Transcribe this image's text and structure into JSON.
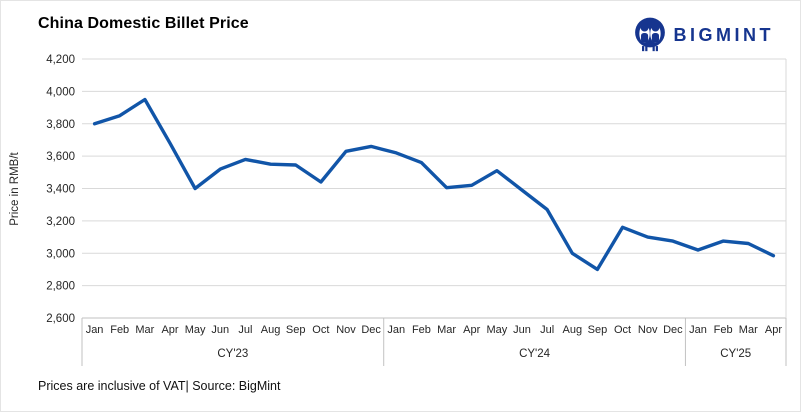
{
  "header": {
    "title": "China Domestic Billet Price",
    "logo_text": "BIGMINT"
  },
  "footer": {
    "note": "Prices are inclusive of VAT| Source: BigMint"
  },
  "colors": {
    "line": "#1155a8",
    "logo": "#16358f",
    "grid": "#d9d9d9",
    "axis": "#c2c2c2",
    "text": "#262626"
  },
  "chart_data": {
    "type": "line",
    "title": "China Domestic Billet Price",
    "xlabel": "",
    "ylabel": "Price in RMB/t",
    "ylim": [
      2600,
      4200
    ],
    "ytick_interval": 200,
    "ytick_labels": [
      "4,200",
      "4,000",
      "3,800",
      "3,600",
      "3,400",
      "3,200",
      "3,000",
      "2,800",
      "2,600"
    ],
    "grid": "horizontal",
    "legend_position": "none",
    "year_groups": [
      {
        "label": "CY'23",
        "months": [
          "Jan",
          "Feb",
          "Mar",
          "Apr",
          "May",
          "Jun",
          "Jul",
          "Aug",
          "Sep",
          "Oct",
          "Nov",
          "Dec"
        ]
      },
      {
        "label": "CY'24",
        "months": [
          "Jan",
          "Feb",
          "Mar",
          "Apr",
          "May",
          "Jun",
          "Jul",
          "Aug",
          "Sep",
          "Oct",
          "Nov",
          "Dec"
        ]
      },
      {
        "label": "CY'25",
        "months": [
          "Jan",
          "Feb",
          "Mar",
          "Apr"
        ]
      }
    ],
    "series": [
      {
        "name": "China Domestic Billet Price",
        "values": [
          3800,
          3850,
          3950,
          3680,
          3400,
          3520,
          3580,
          3550,
          3545,
          3440,
          3630,
          3660,
          3620,
          3560,
          3405,
          3420,
          3510,
          3390,
          3270,
          3000,
          2900,
          3160,
          3100,
          3075,
          3020,
          3075,
          3060,
          2985
        ]
      }
    ]
  }
}
